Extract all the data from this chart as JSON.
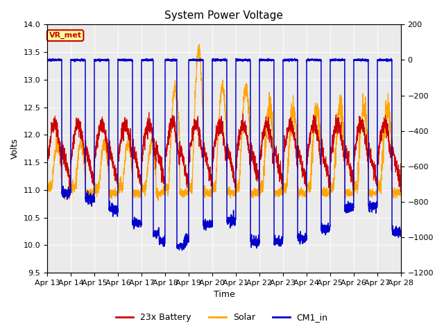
{
  "title": "System Power Voltage",
  "xlabel": "Time",
  "ylabel_left": "Volts",
  "ylim_left": [
    9.5,
    14.0
  ],
  "ylim_right": [
    -1200,
    200
  ],
  "yticks_left": [
    9.5,
    10.0,
    10.5,
    11.0,
    11.5,
    12.0,
    12.5,
    13.0,
    13.5,
    14.0
  ],
  "yticks_right": [
    -1200,
    -1000,
    -800,
    -600,
    -400,
    -200,
    0,
    200
  ],
  "xtick_labels": [
    "Apr 13",
    "Apr 14",
    "Apr 15",
    "Apr 16",
    "Apr 17",
    "Apr 18",
    "Apr 19",
    "Apr 20",
    "Apr 21",
    "Apr 22",
    "Apr 23",
    "Apr 24",
    "Apr 25",
    "Apr 26",
    "Apr 27",
    "Apr 28"
  ],
  "annotation_text": "VR_met",
  "annotation_color": "#cc0000",
  "annotation_bg": "#ffff99",
  "plot_bg": "#ebebeb",
  "line_battery": "#cc0000",
  "line_solar": "#ffa500",
  "line_cm1": "#0000cc",
  "legend_labels": [
    "23x Battery",
    "Solar",
    "CM1_in"
  ],
  "num_days": 15,
  "seed": 7
}
